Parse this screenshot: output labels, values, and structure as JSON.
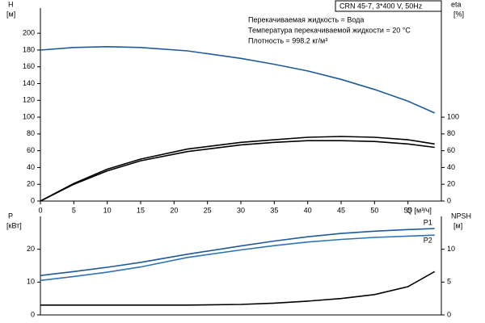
{
  "header": {
    "title": "CRN 45-7, 3*400 V, 50Hz",
    "notes": [
      "Перекачиваемая жидкость = Вода",
      "Температура перекачиваемой жидкости = 20 °C",
      "Плотность = 998.2 кг/м³"
    ]
  },
  "chart_data": [
    {
      "type": "line",
      "ylabel": "H",
      "yunit": "[м]",
      "y2label": "eta",
      "y2unit": "[%]",
      "xlabel": "Q [м³/ч]",
      "x": [
        0,
        5,
        10,
        15,
        22,
        30,
        35,
        40,
        45,
        50,
        55,
        59
      ],
      "xlim": [
        0,
        60
      ],
      "xticks": [
        0,
        5,
        10,
        15,
        20,
        25,
        30,
        35,
        40,
        45,
        50,
        55
      ],
      "ylim": [
        0,
        230
      ],
      "yticks": [
        0,
        20,
        40,
        60,
        80,
        100,
        120,
        140,
        160,
        180,
        200
      ],
      "y2lim": [
        0,
        230
      ],
      "y2ticks": [
        0,
        20,
        40,
        60,
        80,
        100
      ],
      "series": [
        {
          "color": "#1f5a9a",
          "values": [
            180,
            183,
            184,
            183,
            179,
            170,
            163,
            155,
            145,
            133,
            119,
            105
          ]
        },
        {
          "color": "#000000",
          "axis": "y2",
          "values": [
            0,
            21,
            38,
            50,
            62,
            70,
            73,
            76,
            77,
            76,
            73,
            68
          ]
        },
        {
          "color": "#000000",
          "axis": "y2",
          "values": [
            0,
            20,
            36,
            48,
            59,
            67,
            70,
            72,
            72,
            71,
            68,
            64
          ]
        }
      ]
    },
    {
      "type": "line",
      "ylabel": "P",
      "yunit": "[кВт]",
      "y2label": "NPSH",
      "y2unit": "[м]",
      "x": [
        0,
        5,
        10,
        15,
        22,
        30,
        35,
        40,
        45,
        50,
        55,
        59
      ],
      "xlim": [
        0,
        60
      ],
      "ylim": [
        0,
        30
      ],
      "yticks": [
        0,
        10,
        20
      ],
      "y2lim": [
        0,
        15
      ],
      "y2ticks": [
        0,
        5,
        10
      ],
      "series": [
        {
          "name": "P1",
          "color": "#1f5a9a",
          "values": [
            12,
            13.2,
            14.5,
            16,
            18.5,
            21,
            22.5,
            23.8,
            24.8,
            25.5,
            26,
            26.3
          ]
        },
        {
          "name": "P2",
          "color": "#2f73b5",
          "values": [
            10.5,
            11.7,
            13,
            14.6,
            17.5,
            19.8,
            21.1,
            22.2,
            23,
            23.6,
            24,
            24.3
          ]
        },
        {
          "color": "#000000",
          "axis": "y2",
          "values": [
            1.5,
            1.5,
            1.5,
            1.5,
            1.5,
            1.6,
            1.8,
            2.1,
            2.5,
            3.1,
            4.3,
            6.6
          ]
        }
      ]
    }
  ]
}
